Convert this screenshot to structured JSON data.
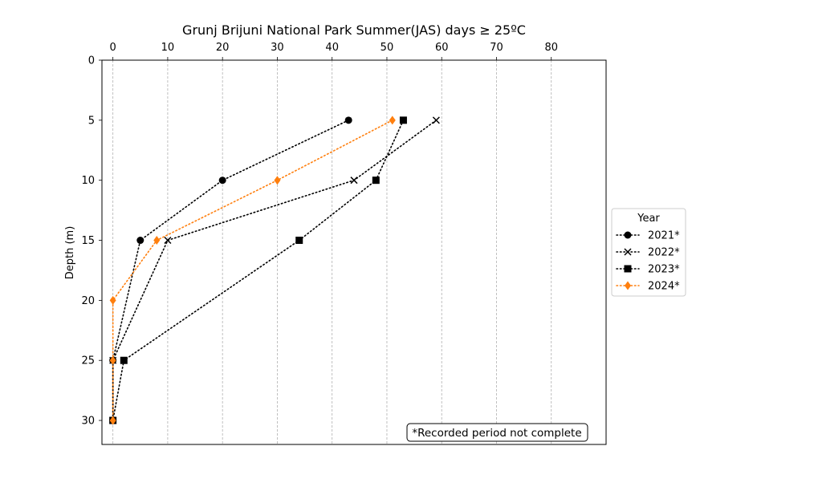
{
  "chart_data": {
    "type": "line",
    "title": "Grunj Brijuni National Park Summer(JAS) days ≥ 25ºC",
    "xlabel": "",
    "ylabel": "Depth (m)",
    "x_axis_position": "top",
    "y_inverted": true,
    "xlim": [
      -2,
      90
    ],
    "ylim": [
      0,
      32
    ],
    "x_ticks": [
      0,
      10,
      20,
      30,
      40,
      50,
      60,
      70,
      80
    ],
    "y_ticks": [
      0,
      5,
      10,
      15,
      20,
      25,
      30
    ],
    "grid": "x-only, dashed",
    "legend": {
      "title": "Year",
      "placement": "right, outside plot"
    },
    "note": "*Recorded period not complete",
    "series": [
      {
        "name": "2021*",
        "marker": "circle",
        "color": "#000000",
        "points": [
          [
            43,
            5
          ],
          [
            20,
            10
          ],
          [
            5,
            15
          ],
          [
            0,
            25
          ],
          [
            0,
            30
          ]
        ]
      },
      {
        "name": "2022*",
        "marker": "x",
        "color": "#000000",
        "points": [
          [
            59,
            5
          ],
          [
            44,
            10
          ],
          [
            10,
            15
          ],
          [
            0,
            25
          ],
          [
            0,
            30
          ]
        ]
      },
      {
        "name": "2023*",
        "marker": "square",
        "color": "#000000",
        "points": [
          [
            53,
            5
          ],
          [
            48,
            10
          ],
          [
            34,
            15
          ],
          [
            2,
            25
          ],
          [
            0,
            30
          ]
        ]
      },
      {
        "name": "2024*",
        "marker": "diamond",
        "color": "#ff7f0e",
        "points": [
          [
            51,
            5
          ],
          [
            30,
            10
          ],
          [
            8,
            15
          ],
          [
            0,
            20
          ],
          [
            0,
            25
          ],
          [
            0,
            30
          ]
        ]
      }
    ]
  }
}
